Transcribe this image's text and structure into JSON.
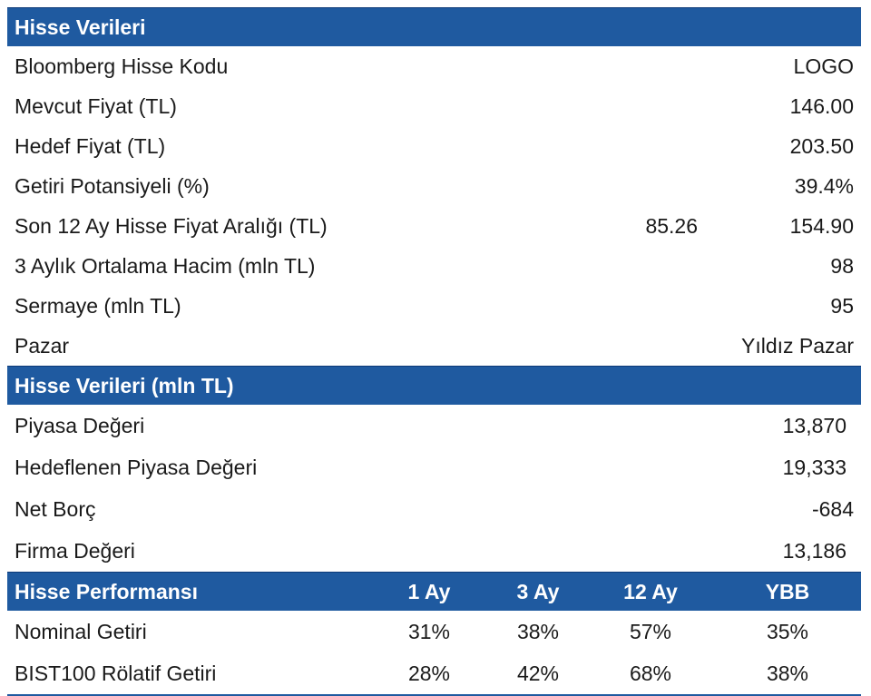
{
  "section1": {
    "title": "Hisse Verileri",
    "rows": [
      {
        "label": "Bloomberg Hisse Kodu",
        "value": "LOGO"
      },
      {
        "label": "Mevcut Fiyat (TL)",
        "value": "146.00"
      },
      {
        "label": "Hedef Fiyat (TL)",
        "value": "203.50"
      },
      {
        "label": "Getiri Potansiyeli (%)",
        "value": "39.4%"
      },
      {
        "label": "Son 12 Ay Hisse Fiyat Aralığı (TL)",
        "low": "85.26",
        "value": "154.90"
      },
      {
        "label": "3 Aylık Ortalama Hacim (mln TL)",
        "value": "98"
      },
      {
        "label": "Sermaye (mln TL)",
        "value": "95"
      },
      {
        "label": "Pazar",
        "value": "Yıldız Pazar"
      }
    ]
  },
  "section2": {
    "title": "Hisse Verileri (mln TL)",
    "rows": [
      {
        "label": "Piyasa Değeri",
        "value": "13,870"
      },
      {
        "label": "Hedeflenen Piyasa Değeri",
        "value": "19,333"
      },
      {
        "label": "Net Borç",
        "value": "-684"
      },
      {
        "label": "Firma Değeri",
        "value": "13,186"
      }
    ]
  },
  "section3": {
    "title": "Hisse Performansı",
    "columns": [
      "1 Ay",
      "3 Ay",
      "12 Ay",
      "YBB"
    ],
    "rows": [
      {
        "label": "Nominal Getiri",
        "values": [
          "31%",
          "38%",
          "57%",
          "35%"
        ]
      },
      {
        "label": "BIST100 Rölatif Getiri",
        "values": [
          "28%",
          "42%",
          "68%",
          "38%"
        ]
      }
    ]
  },
  "colors": {
    "header_bg": "#1f5aa0",
    "header_text": "#ffffff"
  }
}
